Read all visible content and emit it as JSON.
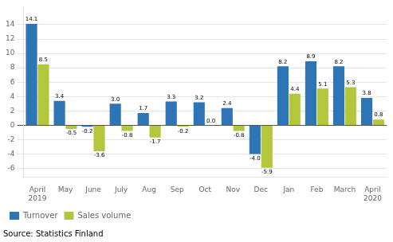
{
  "chart_data": {
    "type": "bar",
    "categories": [
      "April\n2019",
      "May",
      "June",
      "July",
      "Aug",
      "Sep",
      "Oct",
      "Nov",
      "Dec",
      "Jan",
      "Feb",
      "March",
      "April\n2020"
    ],
    "series": [
      {
        "name": "Turnover",
        "color": "#2E75B6",
        "values": [
          14.1,
          3.4,
          -0.2,
          3.0,
          1.7,
          3.3,
          3.2,
          2.4,
          -4.0,
          8.2,
          8.9,
          8.2,
          3.8
        ],
        "value_labels": [
          "14.1",
          "3.4",
          "-0.2",
          "3.0",
          "1.7",
          "3.3",
          "3.2",
          "2.4",
          "-4.0",
          "8.2",
          "8.9",
          "8.2",
          "3.8"
        ]
      },
      {
        "name": "Sales volume",
        "color": "#B4C73C",
        "values": [
          8.5,
          -0.5,
          -3.6,
          -0.8,
          -1.7,
          -0.2,
          0.0,
          -0.8,
          -5.9,
          4.4,
          5.1,
          5.3,
          0.8
        ],
        "value_labels": [
          "8.5",
          "-0.5",
          "-3.6",
          "-0.8",
          "-1.7",
          "-0.2",
          "0.0",
          "-0.8",
          "-5.9",
          "4.4",
          "5.1",
          "5.3",
          "0.8"
        ]
      }
    ],
    "ylim": [
      -7.2,
      16.5
    ],
    "yticks": [
      -6,
      -4,
      -2,
      0,
      2,
      4,
      6,
      8,
      10,
      12,
      14
    ],
    "grid": true,
    "legend": "lower left",
    "data_labels": true,
    "annotations": [
      "Source: Statistics Finland"
    ]
  }
}
